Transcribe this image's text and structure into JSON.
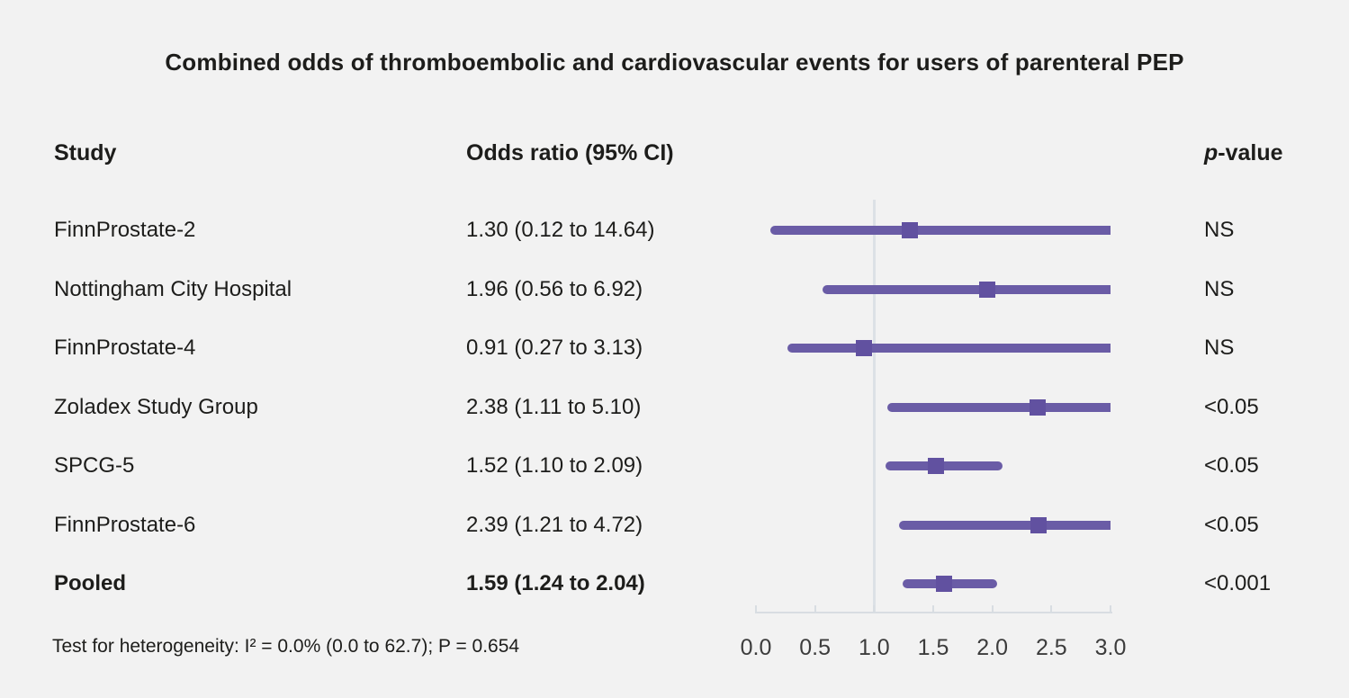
{
  "title": "Combined odds of thromboembolic and cardiovascular events for users of parenteral PEP",
  "header": {
    "study": "Study",
    "odds_ratio": "Odds ratio (95% CI)",
    "p_italic": "p",
    "p_suffix": "-value"
  },
  "footer": "Test for heterogeneity: I² = 0.0% (0.0 to 62.7); P = 0.654",
  "chart_data": {
    "type": "forest",
    "xlim": [
      0.0,
      3.0
    ],
    "ref_line": 1.0,
    "tick_labels": [
      "0.0",
      "0.5",
      "1.0",
      "1.5",
      "2.0",
      "2.5",
      "3.0"
    ],
    "studies": [
      {
        "study": "FinnProstate-2",
        "or": 1.3,
        "ci_low": 0.12,
        "ci_high": 14.64,
        "or_text": "1.30 (0.12 to 14.64)",
        "p": "NS",
        "bold": false
      },
      {
        "study": "Nottingham City Hospital",
        "or": 1.96,
        "ci_low": 0.56,
        "ci_high": 6.92,
        "or_text": "1.96 (0.56 to 6.92)",
        "p": "NS",
        "bold": false
      },
      {
        "study": "FinnProstate-4",
        "or": 0.91,
        "ci_low": 0.27,
        "ci_high": 3.13,
        "or_text": "0.91 (0.27 to 3.13)",
        "p": "NS",
        "bold": false
      },
      {
        "study": "Zoladex Study Group",
        "or": 2.38,
        "ci_low": 1.11,
        "ci_high": 5.1,
        "or_text": "2.38 (1.11 to 5.10)",
        "p": "<0.05",
        "bold": false
      },
      {
        "study": "SPCG-5",
        "or": 1.52,
        "ci_low": 1.1,
        "ci_high": 2.09,
        "or_text": "1.52 (1.10 to 2.09)",
        "p": "<0.05",
        "bold": false
      },
      {
        "study": "FinnProstate-6",
        "or": 2.39,
        "ci_low": 1.21,
        "ci_high": 4.72,
        "or_text": "2.39 (1.21 to 4.72)",
        "p": "<0.05",
        "bold": false
      },
      {
        "study": "Pooled",
        "or": 1.59,
        "ci_low": 1.24,
        "ci_high": 2.04,
        "or_text": "1.59 (1.24 to 2.04)",
        "p": "<0.001",
        "bold": true
      }
    ]
  },
  "colors": {
    "background": "#f2f2f2",
    "bar": "#6a5ca6",
    "marker": "#6151a0",
    "ref_line": "#dce1e6",
    "axis": "#d8dde2",
    "text": "#1d1d1b"
  }
}
